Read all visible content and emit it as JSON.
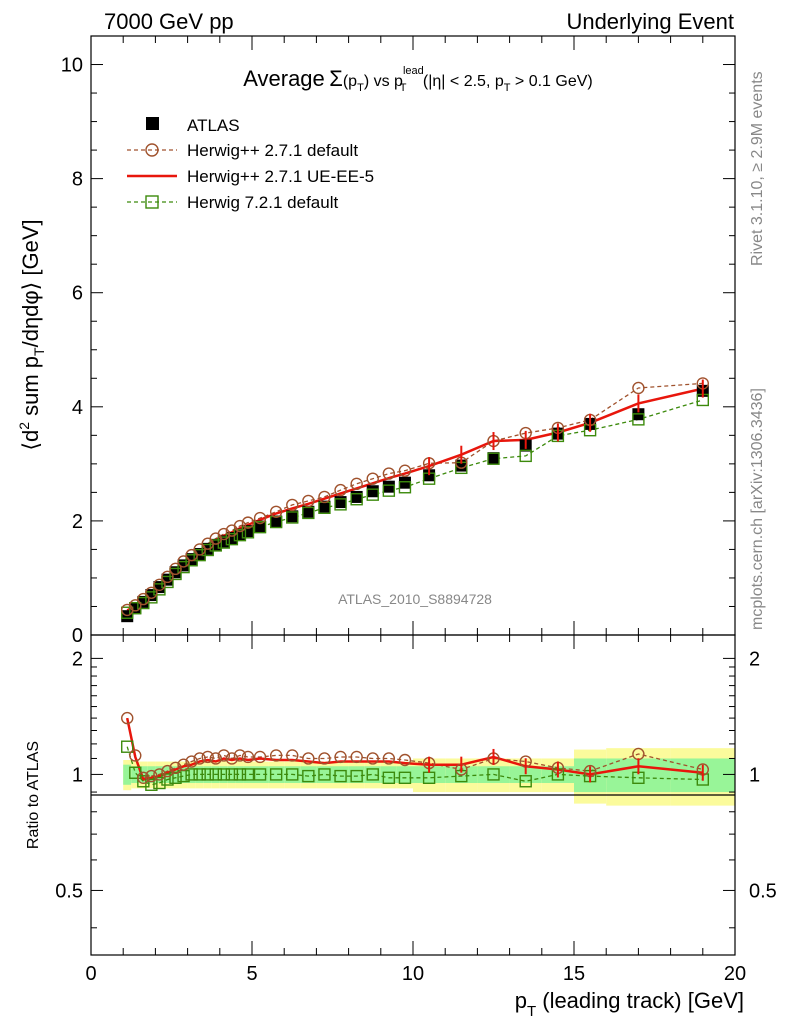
{
  "header": {
    "left": "7000 GeV pp",
    "right": "Underlying Event"
  },
  "side": {
    "rivet": "Rivet 3.1.10, ≥ 2.9M events",
    "mcplots": "mcplots.cern.ch [arXiv:1306.3436]"
  },
  "analysis_id": "ATLAS_2010_S8894728",
  "chart_data": [
    {
      "type": "scatter",
      "title": {
        "prefix": "Average",
        "sigma": "Σ",
        "paren_open": "(p",
        "paren_sub": "T",
        "paren_close": ")",
        "vs": "vs p",
        "vs_sup": "lead",
        "vs_sub": "T",
        "cut_open": "(|η| < 2.5, p",
        "cut_sub": "T",
        "cut_close": "> 0.1 GeV)"
      },
      "ylabel": {
        "p1": "⟨d",
        "sup": "2",
        "p2": " sum p",
        "sub": "T",
        "p3": "/dηdφ⟩ [GeV]"
      },
      "xlim": [
        0,
        20
      ],
      "ylim": [
        0,
        10.5
      ],
      "yticks": [
        {
          "v": 0,
          "label": "0"
        },
        {
          "v": 2,
          "label": "2"
        },
        {
          "v": 4,
          "label": "4"
        },
        {
          "v": 6,
          "label": "6"
        },
        {
          "v": 8,
          "label": "8"
        },
        {
          "v": 10,
          "label": "10"
        }
      ],
      "x": [
        1.125,
        1.375,
        1.625,
        1.875,
        2.125,
        2.375,
        2.625,
        2.875,
        3.125,
        3.375,
        3.625,
        3.875,
        4.125,
        4.375,
        4.625,
        4.875,
        5.25,
        5.75,
        6.25,
        6.75,
        7.25,
        7.75,
        8.25,
        8.75,
        9.25,
        9.75,
        10.5,
        11.5,
        12.5,
        13.5,
        14.5,
        15.5,
        17.0,
        19.0
      ],
      "legend": {
        "position": "top-left"
      },
      "series": [
        {
          "name": "ATLAS",
          "marker": "filled-square",
          "color": "#000000",
          "values": [
            0.33,
            0.47,
            0.58,
            0.7,
            0.84,
            0.97,
            1.1,
            1.22,
            1.33,
            1.42,
            1.51,
            1.58,
            1.64,
            1.7,
            1.76,
            1.82,
            1.9,
            1.99,
            2.08,
            2.16,
            2.25,
            2.33,
            2.42,
            2.52,
            2.6,
            2.67,
            2.8,
            2.97,
            3.1,
            3.32,
            3.53,
            3.7,
            3.87,
            4.28
          ]
        },
        {
          "name": "Herwig++ 2.7.1 default",
          "marker": "open-circle",
          "color": "#a0522d",
          "dash": true,
          "values": [
            0.44,
            0.52,
            0.63,
            0.74,
            0.88,
            1.02,
            1.16,
            1.29,
            1.4,
            1.5,
            1.6,
            1.69,
            1.77,
            1.83,
            1.91,
            1.97,
            2.05,
            2.16,
            2.28,
            2.35,
            2.42,
            2.54,
            2.65,
            2.74,
            2.83,
            2.88,
            3.01,
            3.02,
            3.4,
            3.54,
            3.63,
            3.77,
            4.33,
            4.41
          ]
        },
        {
          "name": "Herwig++ 2.7.1 UE-EE-5",
          "marker": "line",
          "color": "#e8160c",
          "dash": false,
          "values": [
            0.43,
            0.51,
            0.61,
            0.72,
            0.86,
            0.99,
            1.13,
            1.26,
            1.38,
            1.48,
            1.58,
            1.66,
            1.74,
            1.8,
            1.87,
            1.93,
            2.02,
            2.13,
            2.22,
            2.3,
            2.39,
            2.48,
            2.57,
            2.66,
            2.75,
            2.83,
            2.96,
            3.16,
            3.4,
            3.42,
            3.55,
            3.72,
            4.06,
            4.32
          ]
        },
        {
          "name": "Herwig 7.2.1 default",
          "marker": "open-square",
          "color": "#3c8a0c",
          "dash": true,
          "values": [
            0.39,
            0.47,
            0.56,
            0.66,
            0.8,
            0.93,
            1.07,
            1.19,
            1.31,
            1.4,
            1.49,
            1.57,
            1.62,
            1.68,
            1.75,
            1.8,
            1.89,
            1.98,
            2.06,
            2.14,
            2.23,
            2.29,
            2.38,
            2.46,
            2.53,
            2.59,
            2.74,
            2.93,
            3.09,
            3.14,
            3.49,
            3.59,
            3.78,
            4.12
          ]
        }
      ]
    },
    {
      "type": "scatter",
      "ylabel": "Ratio to ATLAS",
      "xlabel": {
        "p": "p",
        "sub": "T",
        "rest": " (leading track) [GeV]"
      },
      "xlim": [
        0,
        20
      ],
      "ylim": [
        0.34,
        2.3
      ],
      "ylog": true,
      "xticks": [
        {
          "v": 0,
          "label": "0"
        },
        {
          "v": 5,
          "label": "5"
        },
        {
          "v": 10,
          "label": "10"
        },
        {
          "v": 15,
          "label": "15"
        },
        {
          "v": 20,
          "label": "20"
        }
      ],
      "yticks": [
        {
          "v": 0.5,
          "label": "0.5"
        },
        {
          "v": 1,
          "label": "1"
        },
        {
          "v": 2,
          "label": "2"
        }
      ],
      "uncertainty_bands": {
        "edges": [
          1.0,
          1.25,
          1.5,
          1.75,
          2.0,
          2.25,
          2.5,
          2.75,
          3.0,
          3.25,
          3.5,
          3.75,
          4.0,
          4.25,
          4.5,
          4.75,
          5.0,
          5.5,
          6.0,
          6.5,
          7.0,
          7.5,
          8.0,
          8.5,
          9.0,
          9.5,
          10.0,
          11.0,
          12.0,
          13.0,
          14.0,
          15.0,
          16.0,
          18.0,
          20.0
        ],
        "inner": [
          0.06,
          0.05,
          0.05,
          0.05,
          0.05,
          0.05,
          0.05,
          0.05,
          0.05,
          0.05,
          0.05,
          0.05,
          0.05,
          0.05,
          0.05,
          0.05,
          0.05,
          0.05,
          0.05,
          0.05,
          0.05,
          0.05,
          0.05,
          0.05,
          0.05,
          0.05,
          0.05,
          0.05,
          0.05,
          0.05,
          0.05,
          0.1,
          0.1,
          0.1
        ],
        "outer": [
          0.09,
          0.08,
          0.08,
          0.08,
          0.08,
          0.08,
          0.08,
          0.08,
          0.08,
          0.08,
          0.08,
          0.08,
          0.08,
          0.08,
          0.08,
          0.08,
          0.08,
          0.08,
          0.08,
          0.08,
          0.08,
          0.08,
          0.08,
          0.08,
          0.08,
          0.08,
          0.1,
          0.1,
          0.1,
          0.1,
          0.1,
          0.16,
          0.17,
          0.17
        ],
        "inner_color": "#98f598",
        "outer_color": "#fbfb9c"
      },
      "series": [
        {
          "name": "Herwig++ 2.7.1 default",
          "values": [
            1.4,
            1.12,
            0.98,
            0.99,
            1.0,
            1.02,
            1.04,
            1.06,
            1.08,
            1.1,
            1.11,
            1.1,
            1.12,
            1.1,
            1.12,
            1.11,
            1.11,
            1.12,
            1.12,
            1.1,
            1.1,
            1.11,
            1.11,
            1.1,
            1.1,
            1.09,
            1.07,
            1.03,
            1.1,
            1.08,
            1.04,
            1.02,
            1.13,
            1.03
          ]
        },
        {
          "name": "Herwig++ 2.7.1 UE-EE-5",
          "values": [
            1.4,
            1.11,
            0.97,
            0.98,
            0.99,
            1.01,
            1.03,
            1.05,
            1.06,
            1.08,
            1.09,
            1.08,
            1.1,
            1.09,
            1.1,
            1.09,
            1.1,
            1.09,
            1.09,
            1.08,
            1.07,
            1.08,
            1.08,
            1.08,
            1.08,
            1.07,
            1.06,
            1.06,
            1.11,
            1.05,
            1.03,
            1.0,
            1.05,
            1.01
          ]
        },
        {
          "name": "Herwig 7.2.1 default",
          "values": [
            1.18,
            1.01,
            0.96,
            0.94,
            0.95,
            0.97,
            0.98,
            0.99,
            1.0,
            1.0,
            1.0,
            1.0,
            1.0,
            1.0,
            1.0,
            1.0,
            1.0,
            1.0,
            1.0,
            0.99,
            1.0,
            0.99,
            0.99,
            1.0,
            0.98,
            0.98,
            0.98,
            0.99,
            1.0,
            0.96,
            1.0,
            0.99,
            0.98,
            0.97
          ]
        }
      ]
    }
  ]
}
